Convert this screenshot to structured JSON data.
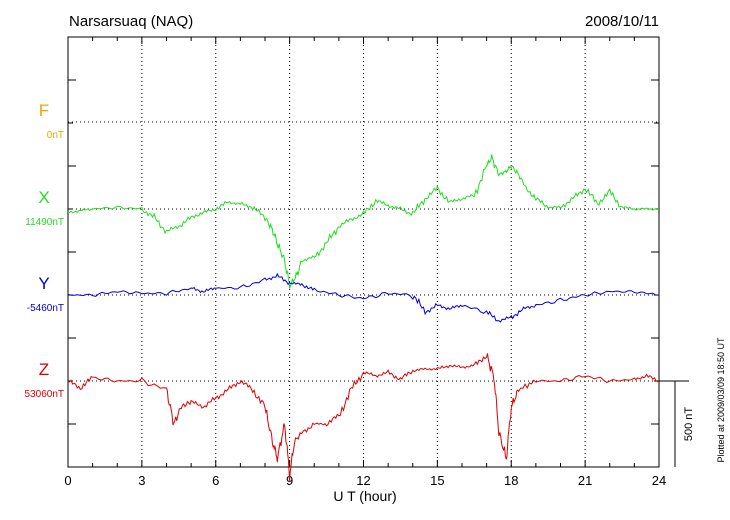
{
  "header": {
    "station": "Narsarsuaq (NAQ)",
    "date": "2008/10/11"
  },
  "plotted_note": "Plotted at 2009/03/09 18:50 UT",
  "scale_bar_label": "500 nT",
  "chart_data": {
    "type": "line",
    "title": "Narsarsuaq (NAQ)",
    "subtitle": "2008/10/11",
    "xlabel": "U T (hour)",
    "xlim": [
      0,
      24
    ],
    "xticks": [
      "0",
      "3",
      "6",
      "9",
      "12",
      "15",
      "18",
      "21",
      "24"
    ],
    "grid": true,
    "scale_nT_per_div": 500,
    "series": [
      {
        "name": "F",
        "baseline_label": "0nT",
        "color": "#f0a500",
        "x": [],
        "y": []
      },
      {
        "name": "X",
        "baseline_label": "11490nT",
        "color": "#22dd22",
        "x": [
          0,
          0.5,
          1,
          2,
          3,
          3.5,
          4,
          4.5,
          5,
          5.5,
          6,
          6.5,
          7,
          7.5,
          8,
          8.3,
          8.5,
          8.8,
          9,
          9.3,
          9.5,
          10,
          10.5,
          11,
          11.5,
          12,
          12.5,
          13,
          13.5,
          14,
          14.5,
          15,
          15.5,
          16,
          16.5,
          17,
          17.2,
          17.5,
          17.8,
          18,
          18.3,
          18.7,
          19,
          19.5,
          20,
          20.5,
          21,
          21.5,
          22,
          22.5,
          23,
          23.5,
          24
        ],
        "y": [
          -20,
          -10,
          0,
          10,
          0,
          -50,
          -130,
          -100,
          -50,
          -20,
          0,
          40,
          30,
          10,
          -50,
          -120,
          -200,
          -300,
          -450,
          -380,
          -300,
          -280,
          -200,
          -100,
          -60,
          -30,
          50,
          20,
          0,
          -30,
          60,
          120,
          40,
          60,
          80,
          250,
          300,
          200,
          220,
          250,
          200,
          100,
          60,
          10,
          10,
          60,
          120,
          30,
          100,
          10,
          0,
          0,
          0
        ]
      },
      {
        "name": "Y",
        "baseline_label": "-5460nT",
        "color": "#0000dd",
        "x": [
          0,
          1,
          2,
          3,
          4,
          5,
          5.5,
          6,
          7,
          8,
          8.5,
          9,
          9.5,
          10,
          11,
          12,
          13,
          14,
          14.5,
          15,
          15.5,
          16,
          17,
          17.5,
          18,
          18.5,
          19,
          20,
          21,
          22,
          23,
          24
        ],
        "y": [
          0,
          0,
          20,
          10,
          10,
          40,
          20,
          40,
          40,
          90,
          110,
          70,
          60,
          30,
          0,
          -20,
          10,
          0,
          -100,
          -60,
          -80,
          -60,
          -100,
          -150,
          -130,
          -80,
          -60,
          -30,
          0,
          20,
          20,
          0
        ]
      },
      {
        "name": "Z",
        "baseline_label": "53060nT",
        "color": "#dd0000",
        "x": [
          0,
          0.5,
          1,
          2,
          3,
          4,
          4.3,
          4.6,
          5,
          5.5,
          6,
          6.5,
          7,
          7.5,
          8,
          8.3,
          8.5,
          8.8,
          9,
          9.2,
          9.5,
          10,
          10.5,
          11,
          11.5,
          12,
          12.5,
          13,
          13.5,
          14,
          14.5,
          15,
          15.5,
          16,
          16.5,
          17,
          17.3,
          17.5,
          17.8,
          18,
          18.3,
          19,
          20,
          21,
          22,
          23,
          23.5,
          24
        ],
        "y": [
          0,
          -40,
          20,
          0,
          0,
          -50,
          -250,
          -150,
          -120,
          -150,
          -100,
          -50,
          0,
          -50,
          -150,
          -350,
          -450,
          -250,
          -550,
          -350,
          -300,
          -250,
          -250,
          -200,
          -50,
          50,
          30,
          50,
          10,
          60,
          70,
          70,
          90,
          80,
          90,
          150,
          20,
          -300,
          -450,
          -150,
          -50,
          0,
          0,
          30,
          0,
          10,
          30,
          0
        ]
      }
    ]
  }
}
